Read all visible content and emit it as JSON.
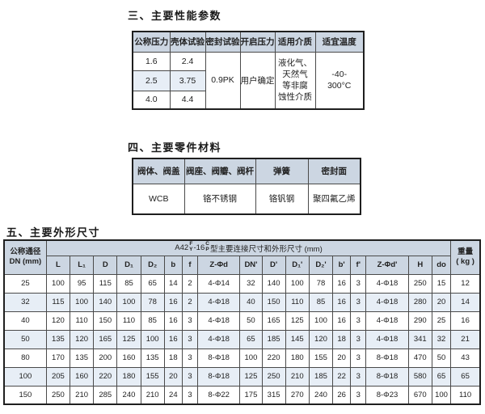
{
  "colors": {
    "header_bg": "#ccd6e2",
    "stripe_bg": "#e7eef6",
    "border": "#4a4a4a",
    "page_bg": "#ffffff"
  },
  "section3": {
    "title": "三、主要性能参数",
    "table": {
      "headers": [
        "公称压力",
        "壳体试验",
        "密封试验",
        "开启压力",
        "适用介质",
        "适宜温度"
      ],
      "pressure_rows": [
        {
          "nominal": "1.6",
          "shell": "2.4"
        },
        {
          "nominal": "2.5",
          "shell": "3.75"
        },
        {
          "nominal": "4.0",
          "shell": "4.4"
        }
      ],
      "seal_test": "0.9PK",
      "opening_pressure": "用户确定",
      "medium_lines": [
        "液化气、",
        "天然气",
        "等非腐",
        "蚀性介质"
      ],
      "temperature_lines": [
        "-40-",
        "300°C"
      ]
    }
  },
  "section4": {
    "title": "四、主要零件材料",
    "table": {
      "headers": [
        "阀体、阀盖",
        "阀座、阀瓣、阀杆",
        "弹簧",
        "密封面"
      ],
      "values": [
        "WCB",
        "铬不锈钢",
        "铬钒钢",
        "聚四氟乙烯"
      ]
    }
  },
  "section5": {
    "title": "五、主要外形尺寸",
    "table": {
      "corner_header_lines": [
        "公称通径",
        "DN (mm)"
      ],
      "span_header": {
        "prefix": "A42",
        "stack1": [
          "F",
          "Y"
        ],
        "mid": "-16",
        "stack2": [
          "C",
          "P"
        ],
        "suffix": "型主要连接尺寸和外形尺寸 (mm)"
      },
      "weight_header_lines": [
        "重量",
        "( kg )"
      ],
      "columns": [
        "L",
        "L₁",
        "D",
        "D₁",
        "D₂",
        "b",
        "f",
        "Z-Φd",
        "DN'",
        "D'",
        "D₁'",
        "D₂'",
        "b'",
        "f'",
        "Z-Φd'",
        "H",
        "do"
      ],
      "rows": [
        {
          "dn": "25",
          "values": [
            "100",
            "95",
            "115",
            "85",
            "65",
            "14",
            "2",
            "4-Φ14",
            "32",
            "140",
            "100",
            "78",
            "16",
            "3",
            "4-Φ18",
            "250",
            "15"
          ],
          "weight": "12"
        },
        {
          "dn": "32",
          "values": [
            "115",
            "100",
            "140",
            "100",
            "78",
            "16",
            "2",
            "4-Φ18",
            "40",
            "150",
            "110",
            "85",
            "16",
            "3",
            "4-Φ18",
            "280",
            "20"
          ],
          "weight": "14"
        },
        {
          "dn": "40",
          "values": [
            "120",
            "110",
            "150",
            "110",
            "85",
            "16",
            "3",
            "4-Φ18",
            "50",
            "165",
            "125",
            "100",
            "16",
            "3",
            "4-Φ18",
            "290",
            "25"
          ],
          "weight": "16"
        },
        {
          "dn": "50",
          "values": [
            "135",
            "120",
            "165",
            "125",
            "100",
            "16",
            "3",
            "4-Φ18",
            "65",
            "185",
            "145",
            "120",
            "18",
            "3",
            "4-Φ18",
            "341",
            "32"
          ],
          "weight": "21"
        },
        {
          "dn": "80",
          "values": [
            "170",
            "135",
            "200",
            "160",
            "135",
            "18",
            "3",
            "8-Φ18",
            "100",
            "220",
            "180",
            "155",
            "20",
            "3",
            "8-Φ18",
            "470",
            "50"
          ],
          "weight": "43"
        },
        {
          "dn": "100",
          "values": [
            "205",
            "160",
            "220",
            "180",
            "155",
            "20",
            "3",
            "8-Φ18",
            "125",
            "250",
            "210",
            "185",
            "22",
            "3",
            "8-Φ18",
            "580",
            "65"
          ],
          "weight": "65"
        },
        {
          "dn": "150",
          "values": [
            "250",
            "210",
            "285",
            "240",
            "210",
            "24",
            "3",
            "8-Φ22",
            "175",
            "315",
            "270",
            "240",
            "26",
            "3",
            "8-Φ23",
            "670",
            "100"
          ],
          "weight": "110"
        }
      ]
    }
  }
}
